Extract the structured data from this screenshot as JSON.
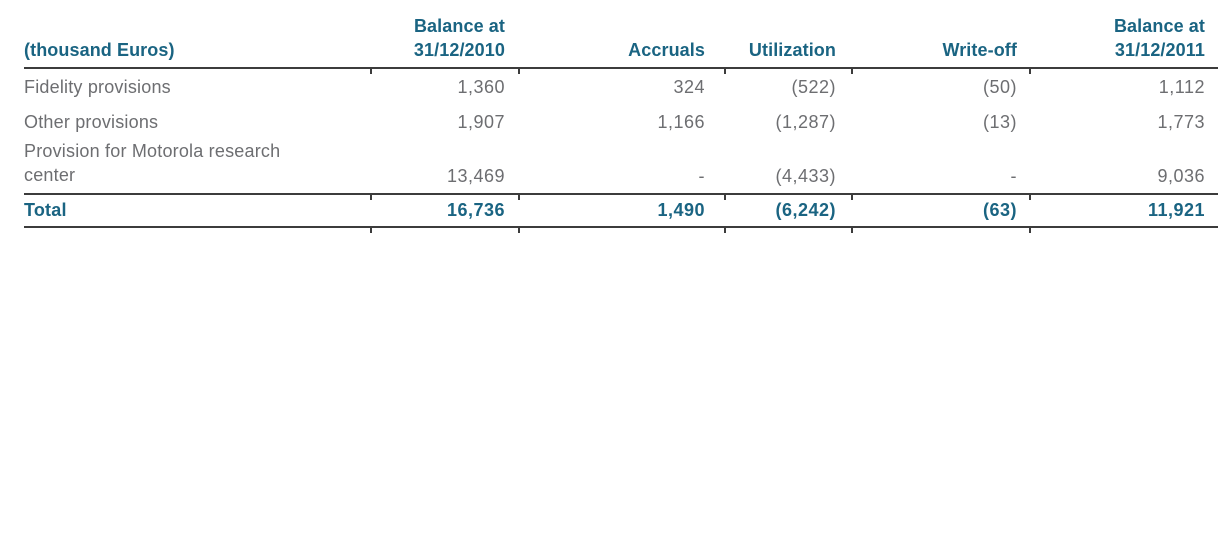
{
  "table": {
    "header": {
      "col0": "(thousand Euros)",
      "col1_line1": "Balance at",
      "col1_line2": "31/12/2010",
      "col2": "Accruals",
      "col3": "Utilization",
      "col4": "Write-off",
      "col5_line1": "Balance at",
      "col5_line2": "31/12/2011"
    },
    "rows": [
      {
        "label": "Fidelity provisions",
        "values": [
          "1,360",
          "324",
          "(522)",
          "(50)",
          "1,112"
        ]
      },
      {
        "label": "Other provisions",
        "values": [
          "1,907",
          "1,166",
          "(1,287)",
          "(13)",
          "1,773"
        ]
      },
      {
        "label": "Provision for Motorola research center",
        "values": [
          "13,469",
          "-",
          "(4,433)",
          "-",
          "9,036"
        ]
      }
    ],
    "total": {
      "label": "Total",
      "values": [
        "16,736",
        "1,490",
        "(6,242)",
        "(63)",
        "11,921"
      ]
    },
    "colors": {
      "header_teal": "#1a6482",
      "body_gray": "#6d6e71",
      "rule": "#3c3c3c"
    }
  }
}
